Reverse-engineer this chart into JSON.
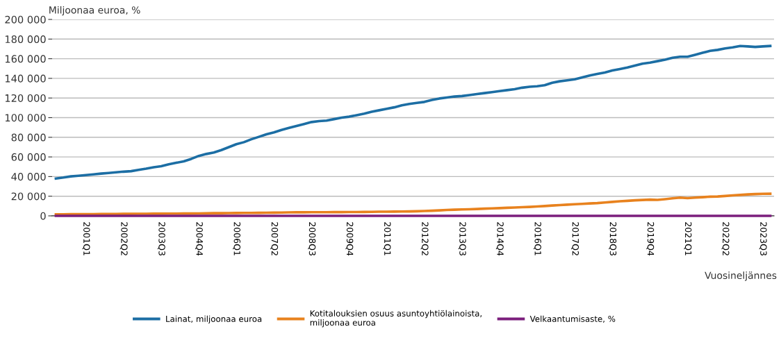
{
  "chart_data": {
    "type": "line",
    "ylabel": "Miljoonaa euroa, %",
    "xlabel": "Vuosineljännes",
    "categories": [
      null,
      null,
      null,
      null,
      "2001Q1",
      null,
      null,
      null,
      null,
      "2002Q2",
      null,
      null,
      null,
      null,
      "2003Q3",
      null,
      null,
      null,
      null,
      "2004Q4",
      null,
      null,
      null,
      null,
      "2006Q1",
      null,
      null,
      null,
      null,
      "2007Q2",
      null,
      null,
      null,
      null,
      "2008Q3",
      null,
      null,
      null,
      null,
      "2009Q4",
      null,
      null,
      null,
      null,
      "2011Q1",
      null,
      null,
      null,
      null,
      "2012Q2",
      null,
      null,
      null,
      null,
      "2013Q3",
      null,
      null,
      null,
      null,
      "2014Q4",
      null,
      null,
      null,
      null,
      "2016Q1",
      null,
      null,
      null,
      null,
      "2017Q2",
      null,
      null,
      null,
      null,
      "2018Q3",
      null,
      null,
      null,
      null,
      "2019Q4",
      null,
      null,
      null,
      null,
      "2021Q1",
      null,
      null,
      null,
      null,
      "2022Q2",
      null,
      null,
      null,
      null,
      "2023Q3",
      null
    ],
    "series": [
      {
        "name": "Lainat, miljoonaa euroa",
        "color": "#1c6ea4",
        "values": [
          38000,
          39000,
          40200,
          40800,
          41500,
          42200,
          43000,
          43600,
          44300,
          45000,
          45500,
          46800,
          48000,
          49500,
          50500,
          52500,
          54000,
          55500,
          58000,
          61000,
          63000,
          64500,
          67000,
          70000,
          73000,
          75000,
          78000,
          80500,
          83000,
          85000,
          87500,
          89500,
          91500,
          93500,
          95500,
          96500,
          97000,
          98500,
          100000,
          101000,
          102500,
          104000,
          106000,
          107500,
          109000,
          110500,
          112500,
          114000,
          115000,
          116000,
          118000,
          119500,
          120500,
          121500,
          122000,
          123000,
          124000,
          125000,
          126000,
          127000,
          128000,
          129000,
          130500,
          131500,
          132000,
          133000,
          135500,
          137000,
          138000,
          139000,
          141000,
          143000,
          144500,
          146000,
          148000,
          149500,
          151000,
          153000,
          155000,
          156000,
          157500,
          159000,
          161000,
          162000,
          162000,
          164000,
          166000,
          168000,
          169000,
          170500,
          171500,
          173000,
          172500,
          172000,
          172500,
          173000
        ]
      },
      {
        "name": "Kotitalouksien osuus asuntoyhtiölainoista,\nmiljoonaa euroa",
        "color": "#e8821e",
        "values": [
          1500,
          1600,
          1700,
          1700,
          1800,
          1800,
          1900,
          1900,
          1900,
          2000,
          2000,
          2100,
          2100,
          2200,
          2200,
          2300,
          2300,
          2400,
          2400,
          2500,
          2600,
          2700,
          2700,
          2800,
          2900,
          3000,
          3000,
          3100,
          3200,
          3300,
          3400,
          3500,
          3600,
          3600,
          3700,
          3700,
          3700,
          3800,
          3800,
          3900,
          3900,
          4000,
          4100,
          4200,
          4200,
          4300,
          4400,
          4500,
          4700,
          4900,
          5200,
          5600,
          6000,
          6300,
          6500,
          6700,
          7000,
          7300,
          7600,
          7900,
          8200,
          8500,
          8800,
          9100,
          9500,
          10000,
          10500,
          11000,
          11400,
          11800,
          12200,
          12600,
          13000,
          13600,
          14200,
          14800,
          15300,
          15800,
          16200,
          16500,
          16300,
          17000,
          17800,
          18500,
          18000,
          18500,
          19000,
          19500,
          19700,
          20200,
          20800,
          21300,
          21800,
          22200,
          22400,
          22500
        ]
      },
      {
        "name": "Velkaantumisaste, %",
        "color": "#7b1f7c",
        "values": [
          0,
          0,
          0,
          0,
          0,
          0,
          0,
          0,
          0,
          0,
          0,
          0,
          0,
          0,
          0,
          0,
          0,
          0,
          0,
          0,
          0,
          0,
          0,
          0,
          0,
          0,
          0,
          0,
          0,
          0,
          0,
          0,
          0,
          0,
          0,
          0,
          0,
          0,
          0,
          0,
          0,
          0,
          0,
          0,
          0,
          0,
          0,
          0,
          0,
          0,
          0,
          0,
          0,
          0,
          0,
          0,
          0,
          0,
          0,
          0,
          0,
          0,
          0,
          0,
          0,
          0,
          0,
          0,
          0,
          0,
          0,
          0,
          0,
          0,
          0,
          0,
          0,
          0,
          0,
          0,
          0,
          0,
          0,
          0,
          0,
          0,
          0,
          0,
          0,
          0,
          0,
          0,
          0,
          0,
          0,
          0
        ]
      }
    ],
    "ylim": [
      0,
      200000
    ],
    "yticks": [
      0,
      {
        "value": 20000,
        "label": "20 000"
      },
      {
        "value": 40000,
        "label": "40 000"
      },
      {
        "value": 60000,
        "label": "60 000"
      },
      {
        "value": 80000,
        "label": "80 000"
      },
      {
        "value": 100000,
        "label": "100 000"
      },
      {
        "value": 120000,
        "label": "120 000"
      },
      {
        "value": 140000,
        "label": "140 000"
      },
      {
        "value": 160000,
        "label": "160 000"
      },
      {
        "value": 180000,
        "label": "180 000"
      },
      {
        "value": 200000,
        "label": "200 000"
      }
    ],
    "grid": "y",
    "legend": "bottom",
    "marker": "none",
    "line_style": "solid"
  }
}
